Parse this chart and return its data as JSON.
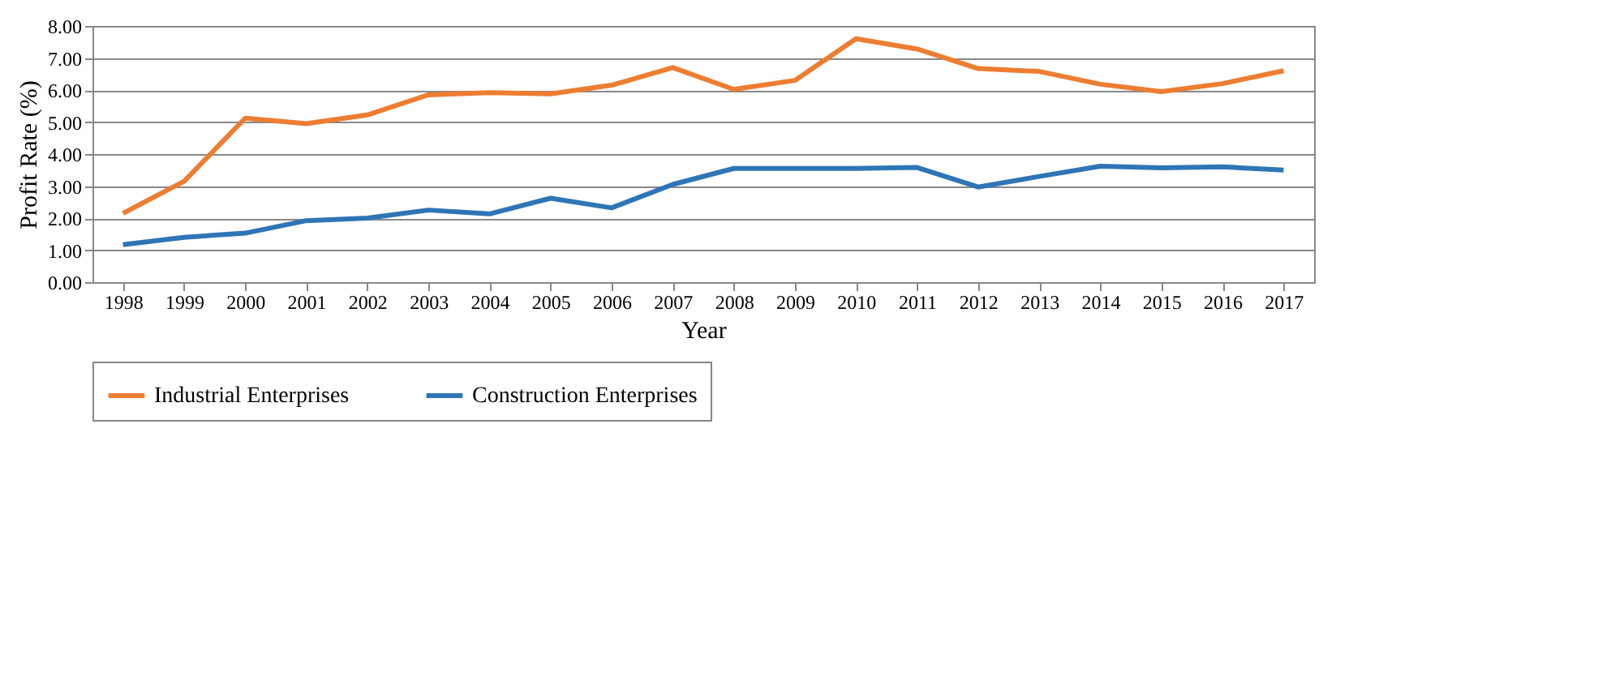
{
  "chart_data": {
    "type": "line",
    "xlabel": "Year",
    "ylabel": "Profit Rate (%)",
    "categories": [
      "1998",
      "1999",
      "2000",
      "2001",
      "2002",
      "2003",
      "2004",
      "2005",
      "2006",
      "2007",
      "2008",
      "2009",
      "2010",
      "2011",
      "2012",
      "2013",
      "2014",
      "2015",
      "2016",
      "2017"
    ],
    "series": [
      {
        "name": "Industrial Enterprises",
        "color": "#ed7d31",
        "values": [
          2.15,
          3.15,
          5.12,
          4.95,
          5.22,
          5.85,
          5.92,
          5.88,
          6.15,
          6.7,
          6.02,
          6.3,
          7.6,
          7.28,
          6.67,
          6.58,
          6.18,
          5.95,
          6.2,
          6.6
        ]
      },
      {
        "name": "Construction Enterprises",
        "color": "#2e75b6",
        "values": [
          1.17,
          1.4,
          1.53,
          1.92,
          2.0,
          2.25,
          2.13,
          2.62,
          2.32,
          3.05,
          3.55,
          3.55,
          3.55,
          3.58,
          2.97,
          3.3,
          3.62,
          3.57,
          3.6,
          3.5
        ]
      }
    ],
    "ylim": [
      0,
      8
    ],
    "yticks": [
      {
        "value": 0,
        "label": "0.00"
      },
      {
        "value": 1,
        "label": "1.00"
      },
      {
        "value": 2,
        "label": "2.00"
      },
      {
        "value": 3,
        "label": "3.00"
      },
      {
        "value": 4,
        "label": "4.00"
      },
      {
        "value": 5,
        "label": "5.00"
      },
      {
        "value": 6,
        "label": "6.00"
      },
      {
        "value": 7,
        "label": "7.00"
      },
      {
        "value": 8,
        "label": "8.00"
      }
    ],
    "grid": "y",
    "legend": "bottom",
    "marker": "none",
    "line_style": "solid"
  }
}
